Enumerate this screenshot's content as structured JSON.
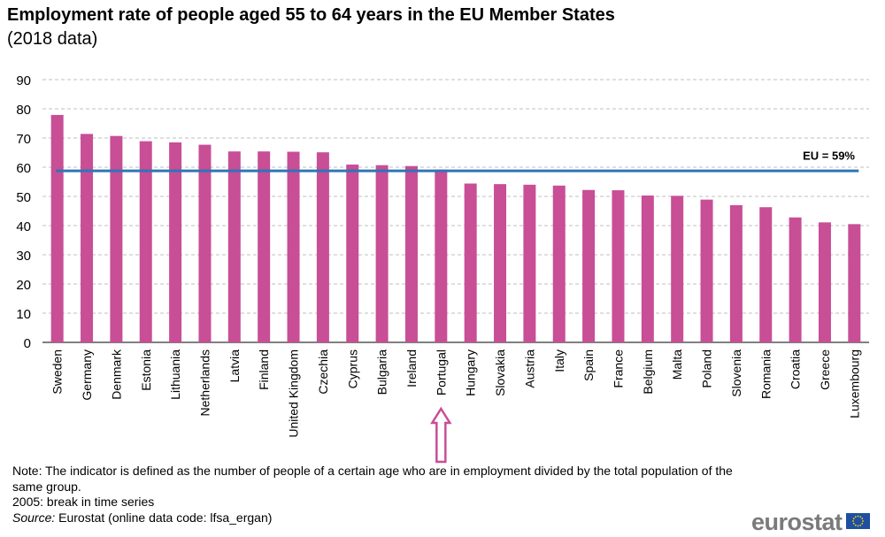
{
  "title": "Employment rate of people aged 55 to 64 years in the EU Member States",
  "subtitle": "(2018 data)",
  "chart_data": {
    "type": "bar",
    "categories": [
      "Sweden",
      "Germany",
      "Denmark",
      "Estonia",
      "Lithuania",
      "Netherlands",
      "Latvia",
      "Finland",
      "United Kingdom",
      "Czechia",
      "Cyprus",
      "Bulgaria",
      "Ireland",
      "Portugal",
      "Hungary",
      "Slovakia",
      "Austria",
      "Italy",
      "Spain",
      "France",
      "Belgium",
      "Malta",
      "Poland",
      "Slovenia",
      "Romania",
      "Croatia",
      "Greece",
      "Luxembourg"
    ],
    "values": [
      77.9,
      71.4,
      70.7,
      68.9,
      68.5,
      67.7,
      65.4,
      65.4,
      65.3,
      65.1,
      60.9,
      60.7,
      60.4,
      59.2,
      54.4,
      54.2,
      54.0,
      53.7,
      52.2,
      52.1,
      50.3,
      50.2,
      48.9,
      47.0,
      46.3,
      42.8,
      41.1,
      40.5
    ],
    "ylim": [
      0,
      90
    ],
    "yticks": [
      0,
      10,
      20,
      30,
      40,
      50,
      60,
      70,
      80,
      90
    ],
    "grid": true,
    "reference_line": {
      "value": 59,
      "label": "EU = 59%",
      "color": "#2e75b6"
    },
    "bar_color": "#c84e96",
    "highlight": {
      "category": "Portugal",
      "marker": "up-arrow",
      "color": "#c84e96"
    }
  },
  "notes": {
    "note": "Note: The indicator is defined as the number of people of a certain age who are in employment divided by the total population of the same group.",
    "break": "2005: break in time series",
    "source_label": "Source:",
    "source_text": " Eurostat (online data code: lfsa_ergan)"
  },
  "logo": "eurostat"
}
